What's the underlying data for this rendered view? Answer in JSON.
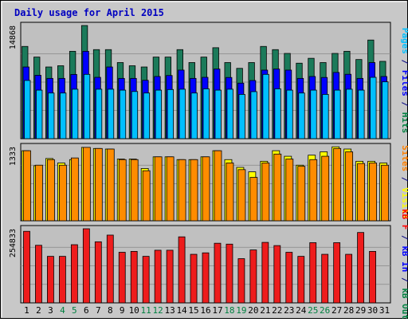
{
  "chart_data": {
    "type": "bar",
    "title": "Daily usage for April 2015",
    "categories": [
      "1",
      "2",
      "3",
      "4",
      "5",
      "6",
      "7",
      "8",
      "9",
      "10",
      "11",
      "12",
      "13",
      "14",
      "15",
      "16",
      "17",
      "18",
      "19",
      "20",
      "21",
      "22",
      "23",
      "24",
      "25",
      "26",
      "27",
      "28",
      "29",
      "30",
      "31"
    ],
    "weekend_days": [
      "4",
      "5",
      "11",
      "12",
      "18",
      "19",
      "25",
      "26"
    ],
    "panels": [
      {
        "id": "hits",
        "scale_label": "14868",
        "ymax": 14868,
        "side_label": [
          {
            "text": "Pages",
            "color": "#00C0FF"
          },
          {
            "text": " / ",
            "color": "#000080"
          },
          {
            "text": "Files",
            "color": "#0000FF"
          },
          {
            "text": " / ",
            "color": "#000080"
          },
          {
            "text": "Hits",
            "color": "#008040"
          }
        ],
        "series": [
          {
            "name": "Hits",
            "color": "#1B7A5A",
            "values": [
              12120,
              10720,
              9420,
              9580,
              11480,
              14868,
              11700,
              11700,
              10000,
              9580,
              9420,
              10720,
              10720,
              11700,
              10000,
              10720,
              11950,
              10000,
              9240,
              10000,
              12120,
              11700,
              11200,
              9920,
              10560,
              10000,
              11200,
              11480,
              10400,
              12960,
              10160
            ]
          },
          {
            "name": "Files",
            "color": "#0000FF",
            "values": [
              9420,
              8330,
              7920,
              7920,
              8440,
              11480,
              8060,
              9420,
              7920,
              7920,
              7670,
              8170,
              8300,
              9010,
              7920,
              8060,
              9150,
              8040,
              7300,
              7640,
              9010,
              9150,
              9010,
              7920,
              8170,
              8040,
              8700,
              8460,
              7920,
              10000,
              8170
            ]
          },
          {
            "name": "Pages",
            "color": "#00BFFF",
            "values": [
              7650,
              6380,
              6000,
              6000,
              6500,
              8450,
              6500,
              6500,
              6380,
              6200,
              6000,
              6380,
              6460,
              6500,
              6000,
              6550,
              6380,
              6500,
              5820,
              6180,
              8450,
              6550,
              6380,
              6000,
              6380,
              5820,
              6380,
              6500,
              6380,
              8060,
              7470
            ]
          }
        ]
      },
      {
        "id": "visits",
        "scale_label": "1333",
        "ymax": 1333,
        "side_label": [
          {
            "text": "Sites",
            "color": "#FF8000"
          },
          {
            "text": " / ",
            "color": "#000080"
          },
          {
            "text": "Visits",
            "color": "#FFFF00"
          }
        ],
        "series": [
          {
            "name": "Visits",
            "color": "#FFFF00",
            "values": [
              1260,
              990,
              1120,
              1040,
              1100,
              1320,
              1300,
              1290,
              1110,
              1110,
              940,
              1150,
              1150,
              1100,
              1100,
              1150,
              1260,
              1100,
              960,
              880,
              1070,
              1260,
              1160,
              1000,
              1180,
              1240,
              1330,
              1290,
              1070,
              1070,
              1040
            ]
          },
          {
            "name": "Sites",
            "color": "#FF8C00",
            "values": [
              1260,
              1000,
              1100,
              1000,
              1130,
              1320,
              1300,
              1290,
              1100,
              1100,
              900,
              1150,
              1150,
              1100,
              1100,
              1150,
              1260,
              1040,
              920,
              780,
              1040,
              1200,
              1110,
              980,
              1100,
              1160,
              1300,
              1240,
              1030,
              1040,
              1000
            ]
          }
        ]
      },
      {
        "id": "kbytes",
        "scale_label": "254833",
        "ymax": 254833,
        "side_label": [
          {
            "text": "kB F",
            "color": "#FF0000"
          },
          {
            "text": " / ",
            "color": "#000080"
          },
          {
            "text": "kB In",
            "color": "#0000FF"
          },
          {
            "text": " / ",
            "color": "#000080"
          },
          {
            "text": "kB Out",
            "color": "#008040"
          }
        ],
        "series": [
          {
            "name": "kB F",
            "color": "#EE1C1C",
            "values": [
              246000,
              198000,
              160000,
              160000,
              200000,
              254833,
              210000,
              233000,
              174000,
              177000,
              160000,
              181000,
              181000,
              227000,
              167000,
              172000,
              205000,
              202000,
              152000,
              182000,
              208000,
              197000,
              174000,
              160000,
              207000,
              167000,
              207000,
              167000,
              242000,
              177000,
              0
            ]
          }
        ]
      }
    ]
  }
}
